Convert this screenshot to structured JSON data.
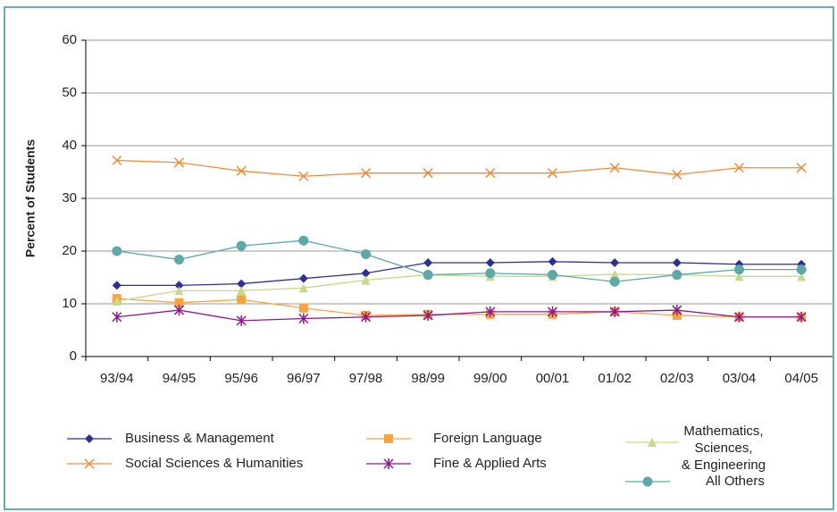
{
  "chart_data": {
    "type": "line",
    "y_label": "Percent of Students",
    "categories": [
      "93/94",
      "94/95",
      "95/96",
      "96/97",
      "97/98",
      "98/99",
      "99/00",
      "00/01",
      "01/02",
      "02/03",
      "03/04",
      "04/05"
    ],
    "series": [
      {
        "name": "Business & Management",
        "color": "#2e3192",
        "marker": "diamond",
        "values": [
          13.5,
          13.5,
          13.8,
          14.8,
          15.8,
          17.8,
          17.8,
          18,
          17.8,
          17.8,
          17.5,
          17.5
        ]
      },
      {
        "name": "Social Sciences & Humanities",
        "color": "#f08a3c",
        "marker": "x",
        "values": [
          37.2,
          36.8,
          35.2,
          34.2,
          34.8,
          34.8,
          34.8,
          34.8,
          35.8,
          34.5,
          35.8,
          35.8
        ]
      },
      {
        "name": "Foreign Language",
        "color": "#f7a541",
        "marker": "square",
        "values": [
          11,
          10.2,
          10.8,
          9.2,
          7.8,
          8,
          8,
          8,
          8.5,
          7.8,
          7.5,
          7.5
        ]
      },
      {
        "name": "Fine & Applied Arts",
        "color": "#8b1a8b",
        "marker": "asterisk",
        "values": [
          7.5,
          8.8,
          6.8,
          7.2,
          7.5,
          7.8,
          8.5,
          8.5,
          8.5,
          8.8,
          7.5,
          7.5
        ]
      },
      {
        "name": "Mathematics, Sciences, & Engineering",
        "color": "#c5da8a",
        "marker": "triangle",
        "values": [
          10.5,
          12.5,
          12.5,
          13,
          14.5,
          15.5,
          15.2,
          15.2,
          15.6,
          15.5,
          15.2,
          15.2
        ]
      },
      {
        "name": "All Others",
        "color": "#5fa8a8",
        "marker": "circle",
        "values": [
          20,
          18.4,
          21,
          22,
          19.4,
          15.5,
          15.8,
          15.5,
          14.2,
          15.5,
          16.5,
          16.5
        ]
      }
    ],
    "ylim": [
      0,
      60
    ],
    "yticks": [
      0,
      10,
      20,
      30,
      40,
      50,
      60
    ],
    "grid": true,
    "legend": "bottom"
  }
}
